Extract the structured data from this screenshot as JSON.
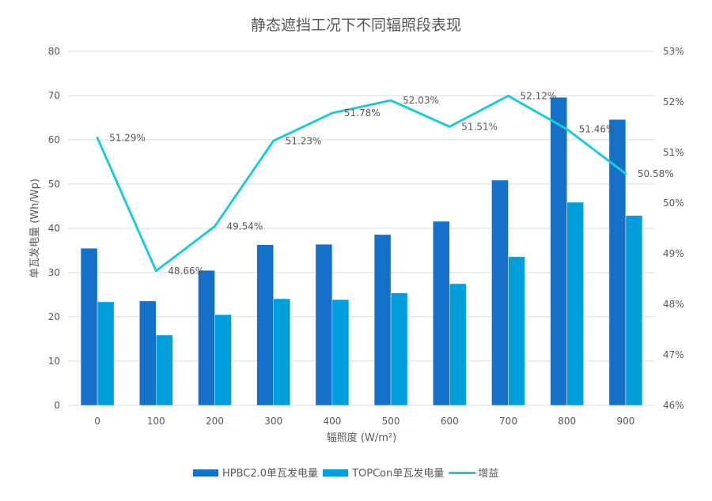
{
  "chart_data": {
    "type": "bar",
    "title": "静态遮挡工况下不同辐照段表现",
    "xlabel": "辐照度 (W/m²)",
    "ylabel": "单瓦发电量 (Wh/Wp)",
    "ylim": [
      0,
      80
    ],
    "y_ticks": [
      "0",
      "10",
      "20",
      "30",
      "40",
      "50",
      "60",
      "70",
      "80"
    ],
    "y2lim": [
      46,
      53
    ],
    "y2_ticks": [
      "46%",
      "47%",
      "48%",
      "49%",
      "50%",
      "51%",
      "52%",
      "53%"
    ],
    "grid": true,
    "legend_position": "bottom",
    "categories": [
      "0",
      "100",
      "200",
      "300",
      "400",
      "500",
      "600",
      "700",
      "800",
      "900"
    ],
    "series": [
      {
        "name": "HPBC2.0单瓦发电量",
        "type": "bar",
        "axis": "left",
        "color": "#1470C8",
        "values": [
          35.5,
          23.6,
          30.5,
          36.3,
          36.4,
          38.6,
          41.6,
          50.9,
          69.6,
          64.6
        ]
      },
      {
        "name": "TOPCon单瓦发电量",
        "type": "bar",
        "axis": "left",
        "color": "#009FDB",
        "values": [
          23.4,
          15.9,
          20.5,
          24.1,
          23.9,
          25.4,
          27.5,
          33.6,
          45.9,
          42.9
        ]
      },
      {
        "name": "增益",
        "type": "line",
        "axis": "right",
        "color": "#1CCAD8",
        "values": [
          51.29,
          48.66,
          49.54,
          51.23,
          51.78,
          52.03,
          51.51,
          52.12,
          51.46,
          50.58
        ],
        "labels": [
          "51.29%",
          "48.66%",
          "49.54%",
          "51.23%",
          "51.78%",
          "52.03%",
          "51.51%",
          "52.12%",
          "51.46%",
          "50.58%"
        ]
      }
    ]
  }
}
